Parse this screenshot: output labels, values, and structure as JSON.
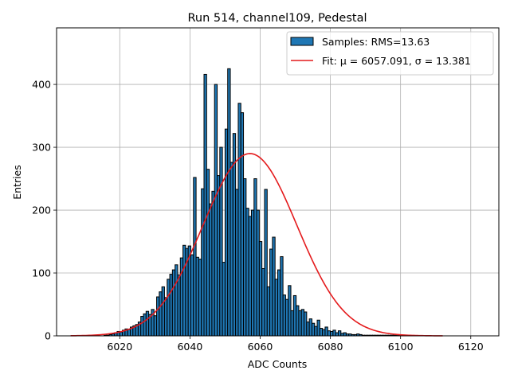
{
  "chart_data": {
    "type": "bar",
    "title": "Run 514, channel109, Pedestal",
    "xlabel": "ADC Counts",
    "ylabel": "Entries",
    "xlim": [
      6002,
      6128
    ],
    "ylim": [
      0,
      490
    ],
    "xticks": [
      6020,
      6040,
      6060,
      6080,
      6100,
      6120
    ],
    "yticks": [
      0,
      100,
      200,
      300,
      400
    ],
    "grid": true,
    "legend": {
      "position": "top-right",
      "entries": [
        {
          "label": "Samples: RMS=13.63",
          "kind": "patch",
          "color": "#1f77b4"
        },
        {
          "label": "Fit: μ = 6057.091, σ = 13.381",
          "kind": "line",
          "color": "#e41a1c"
        }
      ]
    },
    "histogram": {
      "name": "Samples",
      "color": "#1f77b4",
      "edgecolor": "#000000",
      "bin_width": 0.75,
      "x": [
        6015.5,
        6016.25,
        6017,
        6017.75,
        6018.5,
        6019.25,
        6020,
        6020.75,
        6021.5,
        6022.25,
        6023,
        6023.75,
        6024.5,
        6025.25,
        6026,
        6026.75,
        6027.5,
        6028.25,
        6029,
        6029.75,
        6030.5,
        6031.25,
        6032,
        6032.75,
        6033.5,
        6034.25,
        6035,
        6035.75,
        6036.5,
        6037.25,
        6038,
        6038.75,
        6039.5,
        6040.25,
        6041,
        6041.75,
        6042.5,
        6043.25,
        6044,
        6044.75,
        6045.5,
        6046.25,
        6047,
        6047.75,
        6048.5,
        6049.25,
        6050,
        6050.75,
        6051.5,
        6052.25,
        6053,
        6053.75,
        6054.5,
        6055.25,
        6056,
        6056.75,
        6057.5,
        6058.25,
        6059,
        6059.75,
        6060.5,
        6061.25,
        6062,
        6062.75,
        6063.5,
        6064.25,
        6065,
        6065.75,
        6066.5,
        6067.25,
        6068,
        6068.75,
        6069.5,
        6070.25,
        6071,
        6071.75,
        6072.5,
        6073.25,
        6074,
        6074.75,
        6075.5,
        6076.25,
        6077,
        6077.75,
        6078.5,
        6079.25,
        6080,
        6080.75,
        6081.5,
        6082.25,
        6083,
        6083.75,
        6084.5,
        6085.25,
        6086,
        6086.75,
        6087.5,
        6088.25,
        6089,
        6089.75,
        6090.5,
        6091.25,
        6092,
        6092.75,
        6093.5,
        6094.25,
        6095,
        6095.75,
        6096.5,
        6097.25,
        6098,
        6098.75,
        6099.5
      ],
      "values": [
        1,
        1,
        2,
        3,
        5,
        7,
        6,
        9,
        11,
        10,
        14,
        16,
        18,
        22,
        31,
        35,
        39,
        34,
        42,
        32,
        62,
        70,
        78,
        61,
        90,
        98,
        105,
        113,
        97,
        124,
        144,
        139,
        143,
        129,
        252,
        125,
        122,
        234,
        416,
        265,
        210,
        230,
        400,
        255,
        300,
        117,
        329,
        425,
        276,
        322,
        233,
        370,
        355,
        250,
        203,
        190,
        200,
        250,
        200,
        150,
        107,
        233,
        78,
        138,
        157,
        90,
        105,
        126,
        65,
        58,
        80,
        40,
        64,
        48,
        40,
        42,
        38,
        22,
        27,
        20,
        15,
        25,
        12,
        10,
        14,
        8,
        7,
        9,
        5,
        8,
        4,
        5,
        3,
        3,
        2,
        2,
        3,
        2,
        1,
        1,
        1,
        1,
        1,
        1,
        1,
        1,
        1,
        1,
        1,
        1,
        1,
        1,
        1
      ]
    },
    "fit": {
      "name": "Fit",
      "color": "#e41a1c",
      "mu": 6057.091,
      "sigma": 13.381,
      "amplitude": 290,
      "x_range": [
        6006,
        6112
      ]
    }
  }
}
